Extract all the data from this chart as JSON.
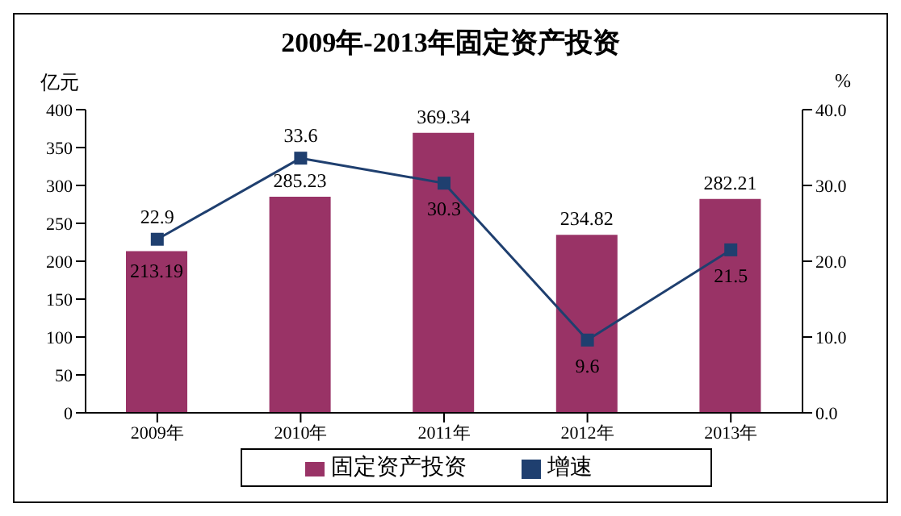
{
  "chart_data": {
    "type": "bar",
    "title": "2009年-2013年固定资产投资",
    "ylabel": "亿元",
    "y2label": "%",
    "categories": [
      "2009年",
      "2010年",
      "2011年",
      "2012年",
      "2013年"
    ],
    "series": [
      {
        "name": "固定资产投资",
        "color": "#993366",
        "values": [
          213.19,
          285.23,
          369.34,
          234.82,
          282.21
        ]
      },
      {
        "name": "增速",
        "type": "line",
        "axis": "y2",
        "color": "#1f3f6f",
        "marker": "square",
        "values": [
          22.9,
          33.6,
          30.3,
          9.6,
          21.5
        ]
      }
    ],
    "ylim": [
      0,
      400
    ],
    "yticks": [
      0,
      50,
      100,
      150,
      200,
      250,
      300,
      350,
      400
    ],
    "y2lim": [
      0,
      40
    ],
    "y2ticks": [
      {
        "value": 0,
        "label": "0.0"
      },
      {
        "value": 10,
        "label": "10.0"
      },
      {
        "value": 20,
        "label": "20.0"
      },
      {
        "value": 30,
        "label": "30.0"
      },
      {
        "value": 40,
        "label": "40.0"
      }
    ],
    "data_labels": true,
    "legend": "bottom",
    "grid": false
  }
}
